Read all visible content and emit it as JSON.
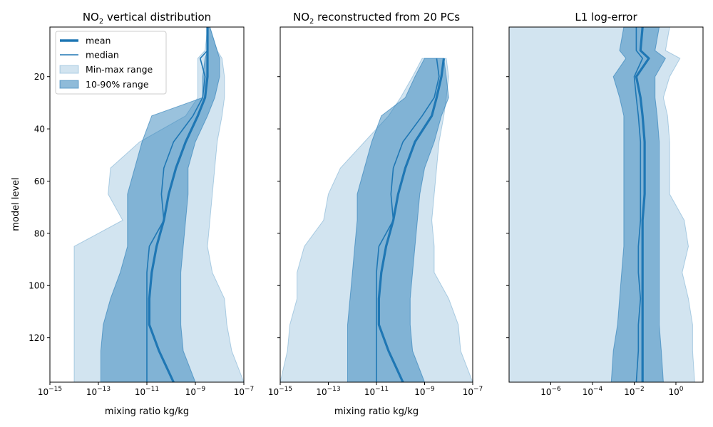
{
  "figure": {
    "shared_ylabel": "model level",
    "colors": {
      "line": "#1f77b4",
      "minmax_fill": "#1f77b4",
      "pct_fill": "#1f77b4"
    }
  },
  "legend": {
    "placement": "upper-left of first panel",
    "entries": [
      "mean",
      "median",
      "Min-max range",
      "10-90% range"
    ]
  },
  "chart_data": [
    {
      "type": "area",
      "title": "NO",
      "title_sub": "2",
      "title_rest": " vertical distribution",
      "xlabel": "mixing ratio kg/kg",
      "xscale": "log",
      "xlim_exp": [
        -15,
        -7
      ],
      "ylim": [
        137,
        1
      ],
      "y_inverted": true,
      "xticks": [
        {
          "base": "10",
          "exp": "−15",
          "e": -15
        },
        {
          "base": "10",
          "exp": "−13",
          "e": -13
        },
        {
          "base": "10",
          "exp": "−11",
          "e": -11
        },
        {
          "base": "10",
          "exp": "−9",
          "e": -9
        },
        {
          "base": "10",
          "exp": "−7",
          "e": -7
        }
      ],
      "yticks": [
        "20",
        "40",
        "60",
        "80",
        "100",
        "120"
      ],
      "yvals": [
        20,
        40,
        60,
        80,
        100,
        120
      ],
      "levels": [
        1,
        10,
        13,
        20,
        28,
        35,
        45,
        55,
        65,
        75,
        85,
        95,
        105,
        115,
        125,
        137
      ],
      "series": [
        {
          "name": "mean",
          "log10": [
            -8.5,
            -8.5,
            -8.5,
            -8.5,
            -8.6,
            -8.9,
            -9.4,
            -9.8,
            -10.1,
            -10.3,
            -10.6,
            -10.8,
            -10.9,
            -10.9,
            -10.5,
            -9.9
          ]
        },
        {
          "name": "median",
          "log10": [
            -8.5,
            -8.5,
            -8.8,
            -8.6,
            -8.7,
            -9.1,
            -9.9,
            -10.3,
            -10.4,
            -10.3,
            -10.9,
            -11.0,
            -11.0,
            -11.0,
            -11.0,
            -11.0
          ]
        },
        {
          "name": "Min-max range",
          "lower": [
            -8.5,
            -8.6,
            -8.9,
            -8.9,
            -8.9,
            -9.4,
            -11.3,
            -12.5,
            -12.6,
            -12.0,
            -14.0,
            -14.0,
            -14.0,
            -14.0,
            -14.0,
            -14.0
          ],
          "upper": [
            -8.4,
            -8.1,
            -7.9,
            -7.8,
            -7.8,
            -7.9,
            -8.1,
            -8.2,
            -8.3,
            -8.4,
            -8.5,
            -8.3,
            -7.8,
            -7.7,
            -7.5,
            -7.0
          ]
        },
        {
          "name": "10-90% range",
          "lower": [
            -8.5,
            -8.5,
            -8.6,
            -8.7,
            -8.7,
            -10.8,
            -11.2,
            -11.5,
            -11.8,
            -11.8,
            -11.8,
            -12.1,
            -12.5,
            -12.8,
            -12.9,
            -12.9
          ],
          "upper": [
            -8.4,
            -8.1,
            -8.0,
            -8.0,
            -8.2,
            -8.5,
            -9.0,
            -9.3,
            -9.3,
            -9.4,
            -9.5,
            -9.6,
            -9.6,
            -9.6,
            -9.5,
            -9.0
          ]
        }
      ]
    },
    {
      "type": "area",
      "title": "NO",
      "title_sub": "2",
      "title_rest": " reconstructed from 20 PCs",
      "xlabel": "mixing ratio kg/kg",
      "xscale": "log",
      "xlim_exp": [
        -15,
        -7
      ],
      "ylim": [
        137,
        1
      ],
      "y_inverted": true,
      "xticks": [
        {
          "base": "10",
          "exp": "−15",
          "e": -15
        },
        {
          "base": "10",
          "exp": "−13",
          "e": -13
        },
        {
          "base": "10",
          "exp": "−11",
          "e": -11
        },
        {
          "base": "10",
          "exp": "−9",
          "e": -9
        },
        {
          "base": "10",
          "exp": "−7",
          "e": -7
        }
      ],
      "levels": [
        13,
        20,
        28,
        35,
        45,
        55,
        65,
        75,
        85,
        95,
        105,
        115,
        125,
        137
      ],
      "series": [
        {
          "name": "mean",
          "log10": [
            -8.2,
            -8.3,
            -8.5,
            -8.7,
            -9.4,
            -9.8,
            -10.1,
            -10.3,
            -10.6,
            -10.8,
            -10.9,
            -10.9,
            -10.5,
            -9.9
          ]
        },
        {
          "name": "median",
          "log10": [
            -8.5,
            -8.4,
            -8.6,
            -9.1,
            -9.9,
            -10.3,
            -10.4,
            -10.3,
            -10.9,
            -11.0,
            -11.0,
            -11.0,
            -11.0,
            -11.0
          ]
        },
        {
          "name": "Min-max range",
          "lower": [
            -9.1,
            -9.5,
            -10.0,
            -10.5,
            -11.5,
            -12.5,
            -13.0,
            -13.2,
            -14.0,
            -14.3,
            -14.3,
            -14.6,
            -14.7,
            -15.0
          ],
          "upper": [
            -8.1,
            -8.0,
            -8.1,
            -8.2,
            -8.4,
            -8.5,
            -8.6,
            -8.7,
            -8.6,
            -8.6,
            -8.0,
            -7.6,
            -7.5,
            -7.0
          ]
        },
        {
          "name": "10-90% range",
          "lower": [
            -9.0,
            -9.4,
            -9.8,
            -10.8,
            -11.2,
            -11.5,
            -11.8,
            -11.8,
            -11.9,
            -12.0,
            -12.1,
            -12.2,
            -12.2,
            -12.2
          ],
          "upper": [
            -8.2,
            -8.1,
            -8.0,
            -8.3,
            -8.6,
            -9.0,
            -9.2,
            -9.3,
            -9.4,
            -9.5,
            -9.6,
            -9.6,
            -9.5,
            -9.0
          ]
        }
      ]
    },
    {
      "type": "area",
      "title": "L1 log-error",
      "xscale": "log",
      "xlim_exp": [
        -8,
        1.3
      ],
      "ylim": [
        137,
        1
      ],
      "y_inverted": true,
      "xticks": [
        {
          "base": "10",
          "exp": "−6",
          "e": -6
        },
        {
          "base": "10",
          "exp": "−4",
          "e": -4
        },
        {
          "base": "10",
          "exp": "−2",
          "e": -2
        },
        {
          "base": "10",
          "exp": "0",
          "e": 0
        }
      ],
      "levels": [
        1,
        10,
        13,
        20,
        28,
        35,
        45,
        55,
        65,
        75,
        85,
        95,
        105,
        115,
        125,
        137
      ],
      "series": [
        {
          "name": "mean",
          "log10": [
            -1.6,
            -1.7,
            -1.3,
            -1.9,
            -1.7,
            -1.6,
            -1.5,
            -1.5,
            -1.5,
            -1.6,
            -1.6,
            -1.6,
            -1.6,
            -1.6,
            -1.6,
            -1.6
          ]
        },
        {
          "name": "median",
          "log10": [
            -1.9,
            -1.9,
            -1.6,
            -2.0,
            -1.9,
            -1.8,
            -1.7,
            -1.7,
            -1.7,
            -1.7,
            -1.8,
            -1.8,
            -1.7,
            -1.8,
            -1.8,
            -1.9
          ]
        },
        {
          "name": "Min-max range",
          "lower": [
            -8.0,
            -8.0,
            -8.0,
            -8.0,
            -8.0,
            -8.0,
            -8.0,
            -8.0,
            -8.0,
            -8.0,
            -8.0,
            -8.0,
            -8.0,
            -8.0,
            -8.0,
            -8.0
          ],
          "upper": [
            -0.3,
            -0.5,
            0.2,
            -0.3,
            -0.6,
            -0.4,
            -0.3,
            -0.3,
            -0.3,
            0.4,
            0.6,
            0.3,
            0.6,
            0.8,
            0.8,
            0.9
          ]
        },
        {
          "name": "10-90% range",
          "lower": [
            -2.5,
            -2.7,
            -2.4,
            -3.0,
            -2.7,
            -2.5,
            -2.5,
            -2.5,
            -2.5,
            -2.5,
            -2.5,
            -2.6,
            -2.7,
            -2.8,
            -3.0,
            -3.1
          ]
        },
        {
          "name": "10-90% range upper",
          "upper": [
            -0.8,
            -1.0,
            -0.5,
            -1.0,
            -1.0,
            -0.9,
            -0.8,
            -0.8,
            -0.8,
            -0.8,
            -0.8,
            -0.8,
            -0.8,
            -0.8,
            -0.7,
            -0.6
          ]
        }
      ]
    }
  ]
}
